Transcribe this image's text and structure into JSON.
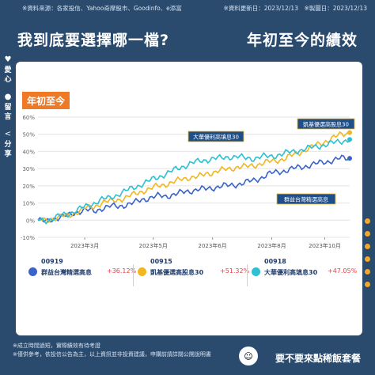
{
  "header": {
    "source": "※資料來源：各家投信、Yahoo奇摩股市、Goodinfo、e添富",
    "dates": "※資料更新日：2023/12/13　※製圖日：2023/12/13",
    "title_left": "我到底要選擇哪一檔?",
    "title_right": "年初至今的績效"
  },
  "sidebar": {
    "like": {
      "glyph": "♥",
      "chars": [
        "愛",
        "心"
      ]
    },
    "comment": {
      "glyph": "●",
      "chars": [
        "留",
        "言"
      ]
    },
    "share": {
      "glyph": "<",
      "chars": [
        "分",
        "享"
      ]
    }
  },
  "badge": "年初至今",
  "chart_data": {
    "type": "line",
    "x_ticks": [
      "2023年3月",
      "2023年5月",
      "2023年6月",
      "2023年8月",
      "2023年10月"
    ],
    "y_ticks": [
      "60%",
      "50%",
      "40%",
      "30%",
      "20%",
      "10%",
      "0%",
      "-10%"
    ],
    "ylim": [
      -10,
      60
    ],
    "series": [
      {
        "code": "00919",
        "name": "群益台灣精選高息",
        "return": "+36.12%",
        "color": "#3a63c7",
        "values": [
          0,
          -1,
          1,
          2,
          3,
          5,
          6,
          5,
          7,
          8,
          8,
          9,
          10,
          12,
          13,
          14,
          14,
          15,
          16,
          17,
          18,
          18,
          19,
          20,
          20,
          21,
          22,
          23,
          25,
          27,
          28,
          29,
          30,
          31,
          32,
          33,
          34,
          35,
          36,
          36
        ]
      },
      {
        "code": "00915",
        "name": "凱基優選高股息30",
        "return": "+51.32%",
        "color": "#f2b71e",
        "values": [
          0,
          0,
          1,
          2,
          3,
          5,
          7,
          8,
          10,
          11,
          12,
          13,
          15,
          17,
          18,
          20,
          21,
          22,
          24,
          25,
          25,
          27,
          28,
          29,
          30,
          31,
          31,
          32,
          33,
          34,
          35,
          36,
          38,
          40,
          42,
          44,
          46,
          48,
          50,
          51
        ]
      },
      {
        "code": "00918",
        "name": "大華優利高填息30",
        "return": "+47.05%",
        "color": "#2bc0d2",
        "values": [
          0,
          0,
          1,
          3,
          4,
          6,
          8,
          10,
          12,
          13,
          15,
          17,
          19,
          21,
          23,
          25,
          27,
          29,
          31,
          33,
          34,
          35,
          36,
          36,
          37,
          37,
          36,
          36,
          37,
          37,
          38,
          39,
          40,
          41,
          42,
          43,
          44,
          45,
          46,
          47
        ]
      }
    ],
    "annotations": [
      "凱基優選高股息30",
      "大華優利高填息30",
      "群益台灣精選高息"
    ]
  },
  "footer": {
    "notes": [
      "※成立時間過短，實際績效有待考證",
      "※僅供參考，依投信公告為主，以上資訊並非投資建議，申購前請詳閱公開說明書"
    ],
    "brand": "要不要來點稀飯套餐"
  }
}
